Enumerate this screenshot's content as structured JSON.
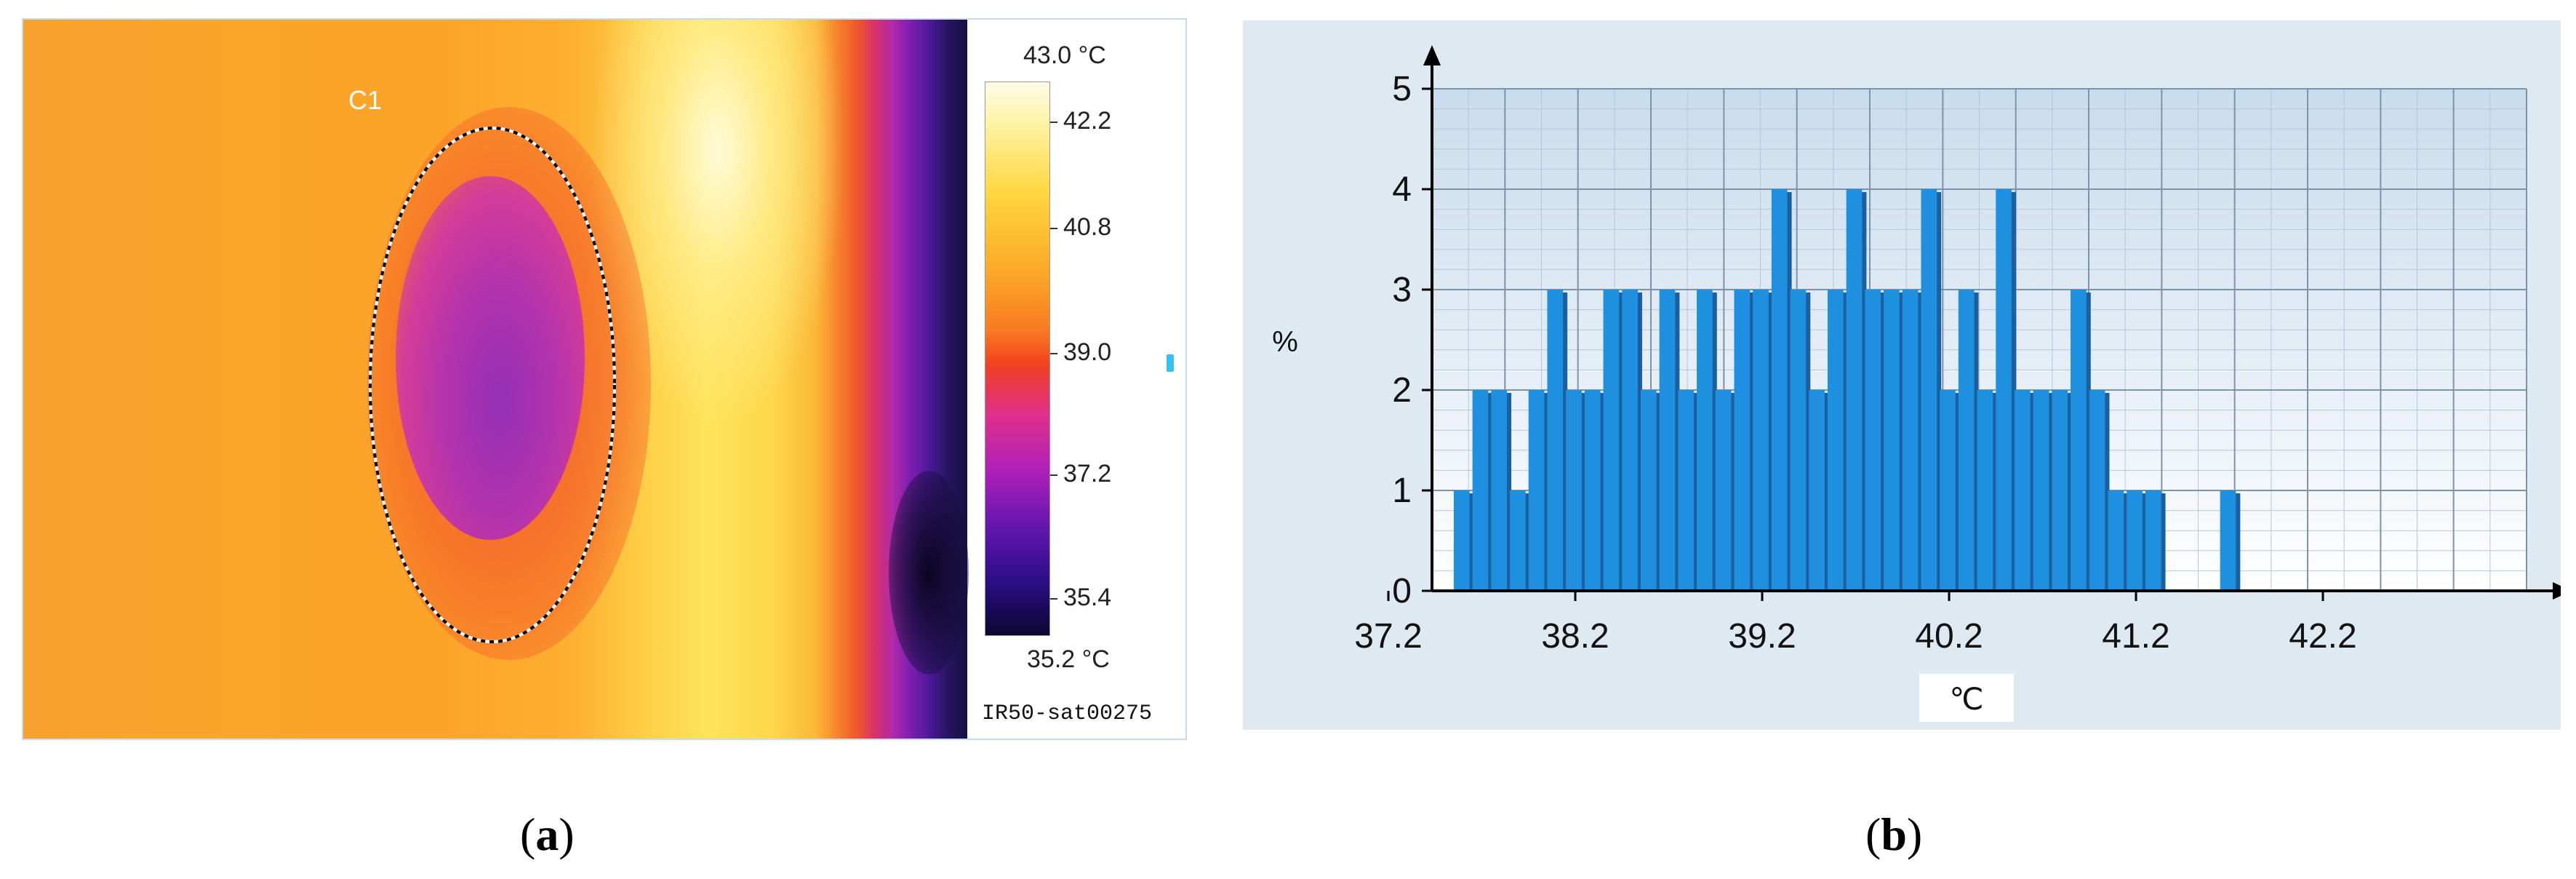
{
  "panel_a": {
    "roi_label": "C1",
    "colorbar": {
      "max_label": "43.0 °C",
      "min_label": "35.2 °C",
      "tick_labels": [
        "42.2",
        "40.8",
        "39.0",
        "37.2",
        "35.4"
      ]
    },
    "image_id": "IR50-sat00275",
    "caption_letter": "a"
  },
  "panel_b": {
    "caption_letter": "b"
  },
  "chart_data": {
    "type": "bar",
    "title": "",
    "xlabel": "℃",
    "ylabel": "%",
    "xlim": [
      37.2,
      43.0
    ],
    "ylim": [
      0,
      5
    ],
    "x_tick_labels": [
      "37.2",
      "38.2",
      "39.2",
      "40.2",
      "41.2",
      "42.2"
    ],
    "y_tick_labels": [
      "0",
      "1",
      "2",
      "3",
      "4",
      "5"
    ],
    "grid": true,
    "bin_width": 0.1,
    "bars": [
      {
        "x": 37.6,
        "y": 1
      },
      {
        "x": 37.7,
        "y": 2
      },
      {
        "x": 37.8,
        "y": 2
      },
      {
        "x": 37.9,
        "y": 1
      },
      {
        "x": 38.0,
        "y": 2
      },
      {
        "x": 38.1,
        "y": 3
      },
      {
        "x": 38.2,
        "y": 2
      },
      {
        "x": 38.3,
        "y": 2
      },
      {
        "x": 38.4,
        "y": 3
      },
      {
        "x": 38.5,
        "y": 3
      },
      {
        "x": 38.6,
        "y": 2
      },
      {
        "x": 38.7,
        "y": 3
      },
      {
        "x": 38.8,
        "y": 2
      },
      {
        "x": 38.9,
        "y": 3
      },
      {
        "x": 39.0,
        "y": 2
      },
      {
        "x": 39.1,
        "y": 3
      },
      {
        "x": 39.2,
        "y": 3
      },
      {
        "x": 39.3,
        "y": 4
      },
      {
        "x": 39.4,
        "y": 3
      },
      {
        "x": 39.5,
        "y": 2
      },
      {
        "x": 39.6,
        "y": 3
      },
      {
        "x": 39.7,
        "y": 4
      },
      {
        "x": 39.8,
        "y": 3
      },
      {
        "x": 39.9,
        "y": 3
      },
      {
        "x": 40.0,
        "y": 3
      },
      {
        "x": 40.1,
        "y": 4
      },
      {
        "x": 40.2,
        "y": 2
      },
      {
        "x": 40.3,
        "y": 3
      },
      {
        "x": 40.4,
        "y": 2
      },
      {
        "x": 40.5,
        "y": 4
      },
      {
        "x": 40.6,
        "y": 2
      },
      {
        "x": 40.7,
        "y": 2
      },
      {
        "x": 40.8,
        "y": 2
      },
      {
        "x": 40.9,
        "y": 3
      },
      {
        "x": 41.0,
        "y": 2
      },
      {
        "x": 41.1,
        "y": 1
      },
      {
        "x": 41.2,
        "y": 1
      },
      {
        "x": 41.3,
        "y": 1
      },
      {
        "x": 41.7,
        "y": 1
      }
    ],
    "bar_color": "#1f8fe0",
    "bar_shadow_color": "#1a5fa0"
  }
}
